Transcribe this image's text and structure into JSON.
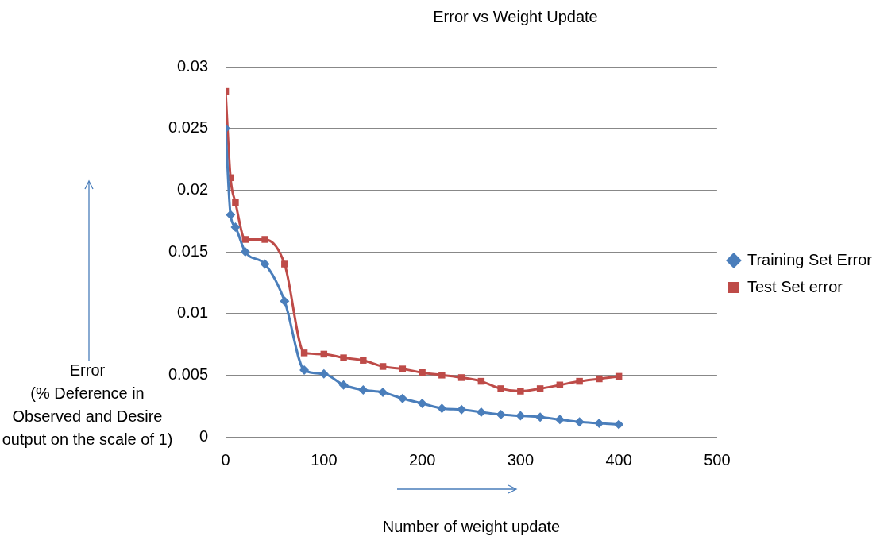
{
  "chart_data": {
    "type": "line",
    "title": "Error vs Weight Update",
    "xlabel": "Number of weight update",
    "ylabel": "Error\n(% Deference in Observed and Desire output on the scale of 1)",
    "x": [
      0,
      5,
      10,
      20,
      40,
      60,
      80,
      100,
      120,
      140,
      160,
      180,
      200,
      220,
      240,
      260,
      280,
      300,
      320,
      340,
      360,
      380,
      400
    ],
    "series": [
      {
        "name": "Training Set Error",
        "color": "#4a7ebb",
        "marker": "diamond",
        "values": [
          0.025,
          0.018,
          0.017,
          0.015,
          0.014,
          0.011,
          0.0054,
          0.0051,
          0.0042,
          0.0038,
          0.0036,
          0.0031,
          0.0027,
          0.0023,
          0.0022,
          0.002,
          0.0018,
          0.0017,
          0.0016,
          0.0014,
          0.0012,
          0.0011,
          0.001
        ]
      },
      {
        "name": "Test Set error",
        "color": "#be4b48",
        "marker": "square",
        "values": [
          0.028,
          0.021,
          0.019,
          0.016,
          0.016,
          0.014,
          0.0068,
          0.0067,
          0.0064,
          0.0062,
          0.0057,
          0.0055,
          0.0052,
          0.005,
          0.0048,
          0.0045,
          0.0039,
          0.0037,
          0.0039,
          0.0042,
          0.0045,
          0.0047,
          0.0049
        ]
      }
    ],
    "xlim": [
      0,
      500
    ],
    "xticks": [
      0,
      100,
      200,
      300,
      400,
      500
    ],
    "ylim": [
      0,
      0.03
    ],
    "yticks": [
      0,
      0.005,
      0.01,
      0.015,
      0.02,
      0.025,
      0.03
    ],
    "grid": "y",
    "legend": "right",
    "line_style": "solid"
  }
}
